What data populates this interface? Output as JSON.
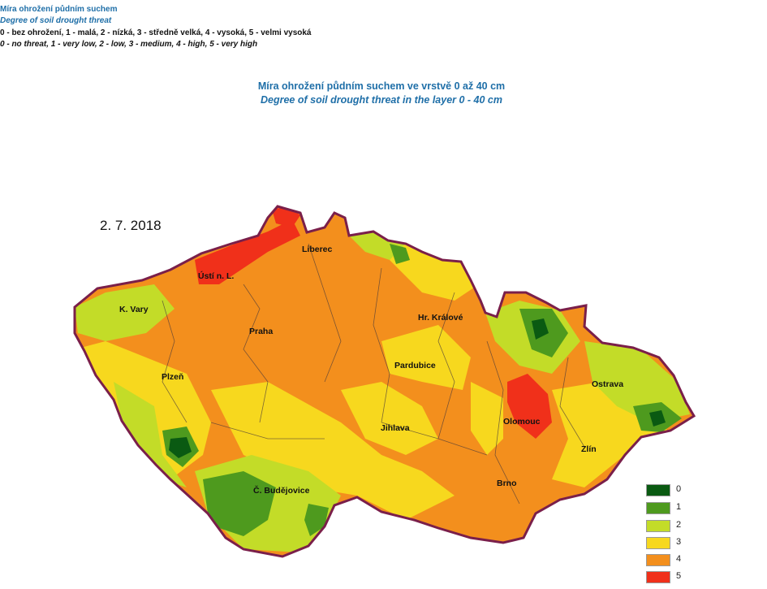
{
  "header": {
    "line1": "Míra ohrožení půdním suchem",
    "line2": "Degree of soil drought threat",
    "line3": "0 - bez ohrožení, 1 - malá, 2 - nízká, 3 - středně velká, 4 - vysoká, 5 - velmi vysoká",
    "line4": "0 - no threat, 1 - very low, 2 - low, 3 - medium, 4 - high, 5 - very high"
  },
  "title": {
    "cz": "Míra ohrožení půdním suchem ve vrstvě 0 až 40 cm",
    "en": "Degree of soil drought threat in the layer 0 - 40 cm"
  },
  "date": "2. 7. 2018",
  "cities": [
    {
      "name": "Liberec",
      "level": 4
    },
    {
      "name": "Ústí n. L.",
      "level": 5
    },
    {
      "name": "K. Vary",
      "level": 2
    },
    {
      "name": "Hr. Králové",
      "level": 4
    },
    {
      "name": "Praha",
      "level": 4
    },
    {
      "name": "Pardubice",
      "level": 3
    },
    {
      "name": "Plzeň",
      "level": 3
    },
    {
      "name": "Ostrava",
      "level": 2
    },
    {
      "name": "Olomouc",
      "level": 5
    },
    {
      "name": "Jihlava",
      "level": 3
    },
    {
      "name": "Zlín",
      "level": 3
    },
    {
      "name": "Brno",
      "level": 4
    },
    {
      "name": "Č. Budějovice",
      "level": 1
    }
  ],
  "legend": [
    {
      "label": "0",
      "color": "#0a5a12"
    },
    {
      "label": "1",
      "color": "#4e9a1e"
    },
    {
      "label": "2",
      "color": "#c3dc28"
    },
    {
      "label": "3",
      "color": "#f7d81e"
    },
    {
      "label": "4",
      "color": "#f38f1d"
    },
    {
      "label": "5",
      "color": "#f0301a"
    }
  ],
  "colors": {
    "border": "#7a1f4a",
    "title_blue": "#1f6fa8"
  }
}
